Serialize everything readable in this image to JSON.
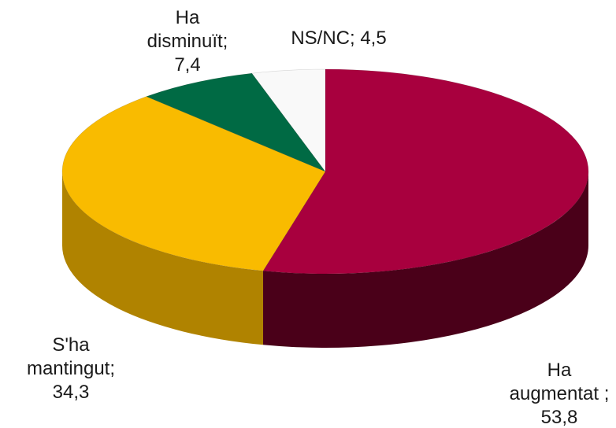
{
  "chart_data": {
    "type": "pie",
    "title": "",
    "slices": [
      {
        "name": "Ha augmentat ;",
        "value": 53.8,
        "value_label": "53,8",
        "color": "#a8003e",
        "side_color": "#4a0019",
        "label_lines": [
          "Ha",
          "augmentat ;",
          "53,8"
        ]
      },
      {
        "name": "S'ha mantingut;",
        "value": 34.3,
        "value_label": "34,3",
        "color": "#f9bb00",
        "side_color": "#b08300",
        "label_lines": [
          "S'ha",
          "mantingut;",
          "34,3"
        ]
      },
      {
        "name": "Ha disminuït;",
        "value": 7.4,
        "value_label": "7,4",
        "color": "#006a44",
        "side_color": "#003d27",
        "label_lines": [
          "Ha",
          "disminuït;",
          "7,4"
        ]
      },
      {
        "name": "NS/NC;",
        "value": 4.5,
        "value_label": "4,5",
        "color": "#f9f9f9",
        "side_color": "#cfcfcf",
        "label_lines": [
          "NS/NC; 4,5"
        ]
      }
    ],
    "start": "12 o'clock",
    "direction": "clockwise",
    "style": "3d",
    "legend": "none"
  }
}
